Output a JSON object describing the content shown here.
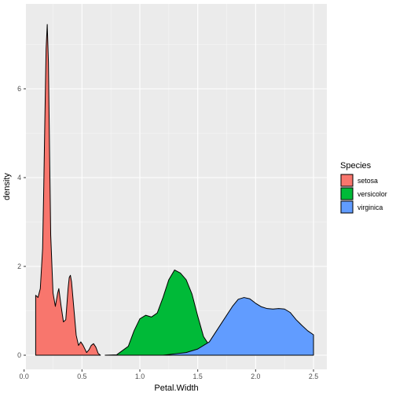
{
  "chart_data": {
    "type": "area",
    "title": "",
    "xlabel": "Petal.Width",
    "ylabel": "density",
    "xlim": [
      0.0,
      2.5
    ],
    "ylim": [
      0,
      7.5
    ],
    "x_ticks": [
      "0.0",
      "0.5",
      "1.0",
      "1.5",
      "2.0",
      "2.5"
    ],
    "y_ticks": [
      "0",
      "2",
      "4",
      "6"
    ],
    "grid": true,
    "legend_position": "right",
    "legend_title": "Species",
    "series": [
      {
        "name": "setosa",
        "color": "#F8766D",
        "points": [
          [
            0.1,
            1.35
          ],
          [
            0.12,
            1.3
          ],
          [
            0.14,
            1.5
          ],
          [
            0.16,
            2.4
          ],
          [
            0.17,
            3.8
          ],
          [
            0.18,
            5.4
          ],
          [
            0.19,
            6.9
          ],
          [
            0.2,
            7.45
          ],
          [
            0.21,
            6.6
          ],
          [
            0.22,
            4.6
          ],
          [
            0.23,
            2.7
          ],
          [
            0.25,
            1.4
          ],
          [
            0.27,
            1.1
          ],
          [
            0.29,
            1.4
          ],
          [
            0.3,
            1.5
          ],
          [
            0.32,
            1.1
          ],
          [
            0.34,
            0.75
          ],
          [
            0.36,
            0.8
          ],
          [
            0.38,
            1.5
          ],
          [
            0.39,
            1.75
          ],
          [
            0.4,
            1.8
          ],
          [
            0.41,
            1.65
          ],
          [
            0.43,
            1.05
          ],
          [
            0.45,
            0.45
          ],
          [
            0.47,
            0.22
          ],
          [
            0.49,
            0.3
          ],
          [
            0.51,
            0.22
          ],
          [
            0.54,
            0.06
          ],
          [
            0.56,
            0.12
          ],
          [
            0.58,
            0.22
          ],
          [
            0.6,
            0.26
          ],
          [
            0.62,
            0.18
          ],
          [
            0.64,
            0.04
          ],
          [
            0.66,
            0.0
          ]
        ]
      },
      {
        "name": "versicolor",
        "color": "#00BA38",
        "points": [
          [
            0.7,
            0.0
          ],
          [
            0.8,
            0.01
          ],
          [
            0.9,
            0.2
          ],
          [
            0.95,
            0.55
          ],
          [
            1.0,
            0.82
          ],
          [
            1.05,
            0.9
          ],
          [
            1.1,
            0.86
          ],
          [
            1.15,
            0.95
          ],
          [
            1.2,
            1.3
          ],
          [
            1.25,
            1.7
          ],
          [
            1.3,
            1.92
          ],
          [
            1.35,
            1.85
          ],
          [
            1.4,
            1.7
          ],
          [
            1.45,
            1.38
          ],
          [
            1.5,
            0.88
          ],
          [
            1.55,
            0.42
          ],
          [
            1.6,
            0.22
          ],
          [
            1.7,
            0.08
          ],
          [
            1.8,
            0.02
          ],
          [
            1.9,
            0.0
          ]
        ]
      },
      {
        "name": "virginica",
        "color": "#619CFF",
        "points": [
          [
            1.2,
            0.0
          ],
          [
            1.3,
            0.03
          ],
          [
            1.4,
            0.06
          ],
          [
            1.5,
            0.14
          ],
          [
            1.6,
            0.3
          ],
          [
            1.7,
            0.7
          ],
          [
            1.8,
            1.1
          ],
          [
            1.85,
            1.26
          ],
          [
            1.9,
            1.3
          ],
          [
            1.95,
            1.27
          ],
          [
            2.0,
            1.17
          ],
          [
            2.05,
            1.09
          ],
          [
            2.1,
            1.05
          ],
          [
            2.15,
            1.04
          ],
          [
            2.2,
            1.05
          ],
          [
            2.25,
            1.04
          ],
          [
            2.3,
            0.96
          ],
          [
            2.35,
            0.8
          ],
          [
            2.4,
            0.67
          ],
          [
            2.45,
            0.55
          ],
          [
            2.5,
            0.46
          ]
        ]
      }
    ]
  }
}
